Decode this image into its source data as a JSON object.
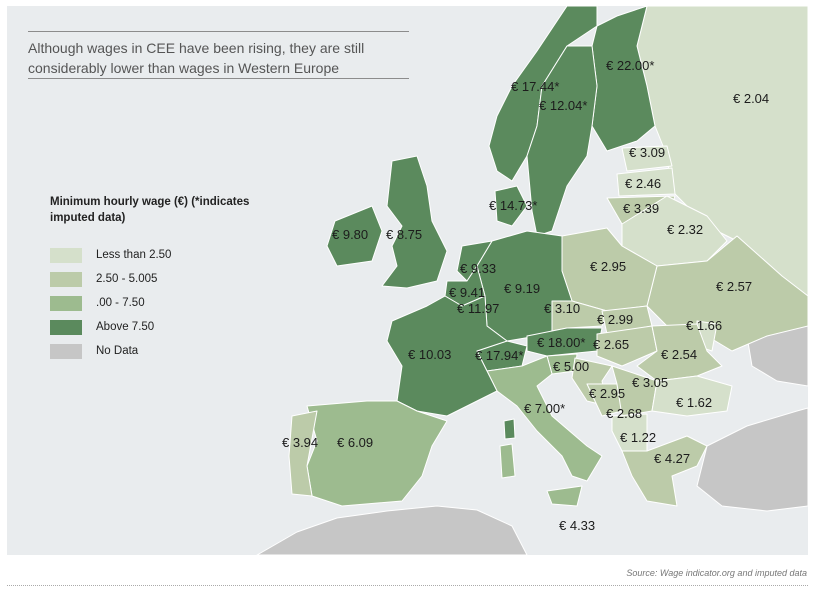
{
  "title": "Although wages in CEE have been rising, they are still considerably lower than wages in Western Europe",
  "legend": {
    "title": "Minimum hourly wage (€) (*indicates imputed data)",
    "items": [
      {
        "label": "Less than 2.50",
        "color": "#d5e0cb"
      },
      {
        "label": "2.50 - 5.005",
        "color": "#bccba9"
      },
      {
        "label": ".00 - 7.50",
        "color": "#9dbb8f"
      },
      {
        "label": "Above 7.50",
        "color": "#5b8a5d"
      },
      {
        "label": "No Data",
        "color": "#c6c6c6"
      }
    ]
  },
  "colors": {
    "sea": "#e9ecee",
    "border": "#ffffff"
  },
  "countries": {
    "norway": "€ 17.44*",
    "sweden": "€ 12.04*",
    "finland": "€ 22.00*",
    "russia": "€ 2.04",
    "estonia": "€ 3.09",
    "latvia": "€ 2.46",
    "lithuania": "€ 3.39",
    "belarus": "€ 2.32",
    "denmark": "€ 14.73*",
    "ireland": "€ 9.80",
    "uk": "€ 8.75",
    "netherlands": "€ 9.33",
    "belgium": "€ 9.41",
    "luxembourg": "€ 11.97",
    "germany": "€ 9.19",
    "poland": "€ 2.95",
    "ukraine": "€ 2.57",
    "czechia": "€ 3.10",
    "slovakia": "€ 2.99",
    "moldova": "€ 1.66",
    "austria": "€ 18.00*",
    "hungary": "€ 2.65",
    "romania": "€ 2.54",
    "france": "€ 10.03",
    "switzerland": "€ 17.94*",
    "slovenia": "€ 5.00",
    "croatia": "€ 2.95",
    "serbia": "€ 3.05",
    "bosnia": "€ 2.68",
    "bulgaria": "€ 1.62",
    "italy": "€ 7.00*",
    "albania": "€ 1.22",
    "greece": "€ 4.27",
    "portugal": "€ 3.94",
    "spain": "€ 6.09",
    "malta": "€ 4.33"
  },
  "source": "Source: Wage indicator.org and imputed data"
}
